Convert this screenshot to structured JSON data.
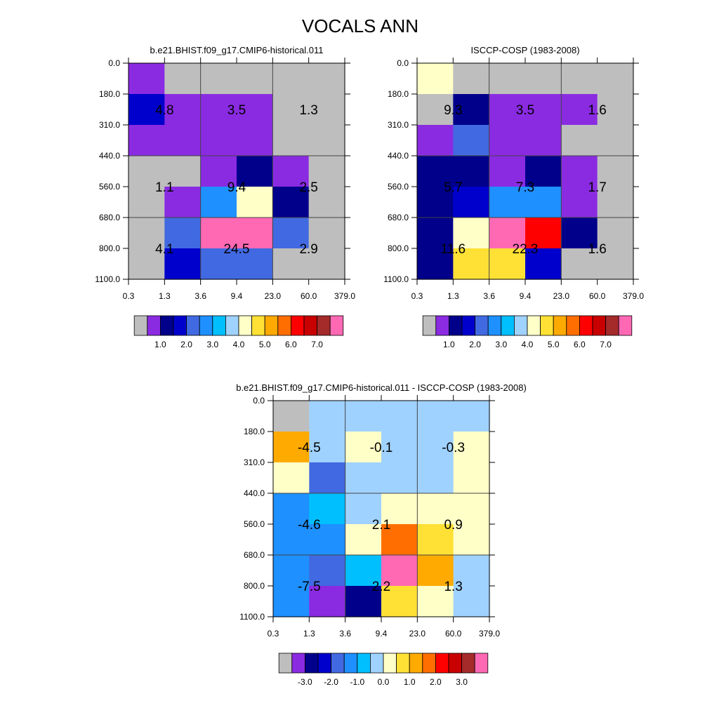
{
  "title": "VOCALS ANN",
  "colors": {
    "missing": "#bebebe",
    "cell_border": "#000000",
    "grid_line": "#444444"
  },
  "chart_data": [
    {
      "type": "heatmap",
      "id": "model",
      "title": "b.e21.BHIST.f09_g17.CMIP6-historical.011",
      "x_ticks": [
        "0.3",
        "1.3",
        "3.6",
        "9.4",
        "23.0",
        "60.0",
        "379.0"
      ],
      "y_ticks": [
        "0.0",
        "180.0",
        "310.0",
        "440.0",
        "560.0",
        "680.0",
        "800.0",
        "1100.0"
      ],
      "cells": [
        [
          "#8a2be2",
          "#bebebe",
          "#bebebe",
          "#bebebe",
          "#bebebe",
          "#bebebe"
        ],
        [
          "#0000cd",
          "#8a2be2",
          "#8a2be2",
          "#8a2be2",
          "#bebebe",
          "#bebebe"
        ],
        [
          "#8a2be2",
          "#8a2be2",
          "#8a2be2",
          "#8a2be2",
          "#bebebe",
          "#bebebe"
        ],
        [
          "#bebebe",
          "#bebebe",
          "#8a2be2",
          "#00008b",
          "#8a2be2",
          "#bebebe"
        ],
        [
          "#bebebe",
          "#8a2be2",
          "#1e90ff",
          "#ffffc8",
          "#00008b",
          "#bebebe"
        ],
        [
          "#bebebe",
          "#4169e1",
          "#ff69b4",
          "#ff69b4",
          "#4169e1",
          "#bebebe"
        ],
        [
          "#bebebe",
          "#0000cd",
          "#4169e1",
          "#4169e1",
          "#bebebe",
          "#bebebe"
        ]
      ],
      "block_values": [
        [
          "4.8",
          "3.5",
          "1.3"
        ],
        [
          "1.1",
          "9.4",
          "2.5"
        ],
        [
          "4.1",
          "24.5",
          "2.9"
        ]
      ],
      "colorbar": {
        "colors": [
          "#bebebe",
          "#8a2be2",
          "#00008b",
          "#0000cd",
          "#4169e1",
          "#1e90ff",
          "#00bfff",
          "#a0d2ff",
          "#ffffc8",
          "#ffe135",
          "#ffaa00",
          "#ff6e00",
          "#ff0000",
          "#c80000",
          "#a52a2a",
          "#ff69b4"
        ],
        "labels": [
          "1.0",
          "2.0",
          "3.0",
          "4.0",
          "5.0",
          "6.0",
          "7.0"
        ]
      }
    },
    {
      "type": "heatmap",
      "id": "obs",
      "title": "ISCCP-COSP (1983-2008)",
      "x_ticks": [
        "0.3",
        "1.3",
        "3.6",
        "9.4",
        "23.0",
        "60.0",
        "379.0"
      ],
      "y_ticks": [
        "0.0",
        "180.0",
        "310.0",
        "440.0",
        "560.0",
        "680.0",
        "800.0",
        "1100.0"
      ],
      "cells": [
        [
          "#ffffc8",
          "#bebebe",
          "#bebebe",
          "#bebebe",
          "#bebebe",
          "#bebebe"
        ],
        [
          "#bebebe",
          "#00008b",
          "#8a2be2",
          "#8a2be2",
          "#8a2be2",
          "#bebebe"
        ],
        [
          "#8a2be2",
          "#4169e1",
          "#8a2be2",
          "#8a2be2",
          "#bebebe",
          "#bebebe"
        ],
        [
          "#00008b",
          "#00008b",
          "#8a2be2",
          "#00008b",
          "#8a2be2",
          "#bebebe"
        ],
        [
          "#00008b",
          "#0000cd",
          "#1e90ff",
          "#1e90ff",
          "#8a2be2",
          "#bebebe"
        ],
        [
          "#00008b",
          "#ffffc8",
          "#ff69b4",
          "#ff0000",
          "#00008b",
          "#bebebe"
        ],
        [
          "#00008b",
          "#ffe135",
          "#ffe135",
          "#0000cd",
          "#bebebe",
          "#bebebe"
        ]
      ],
      "block_values": [
        [
          "9.3",
          "3.5",
          "1.6"
        ],
        [
          "5.7",
          "7.3",
          "1.7"
        ],
        [
          "11.6",
          "22.3",
          "1.6"
        ]
      ],
      "colorbar": {
        "colors": [
          "#bebebe",
          "#8a2be2",
          "#00008b",
          "#0000cd",
          "#4169e1",
          "#1e90ff",
          "#00bfff",
          "#a0d2ff",
          "#ffffc8",
          "#ffe135",
          "#ffaa00",
          "#ff6e00",
          "#ff0000",
          "#c80000",
          "#a52a2a",
          "#ff69b4"
        ],
        "labels": [
          "1.0",
          "2.0",
          "3.0",
          "4.0",
          "5.0",
          "6.0",
          "7.0"
        ]
      }
    },
    {
      "type": "heatmap",
      "id": "diff",
      "title": "b.e21.BHIST.f09_g17.CMIP6-historical.011 - ISCCP-COSP (1983-2008)",
      "x_ticks": [
        "0.3",
        "1.3",
        "3.6",
        "9.4",
        "23.0",
        "60.0",
        "379.0"
      ],
      "y_ticks": [
        "0.0",
        "180.0",
        "310.0",
        "440.0",
        "560.0",
        "680.0",
        "800.0",
        "1100.0"
      ],
      "cells": [
        [
          "#bebebe",
          "#a0d2ff",
          "#a0d2ff",
          "#a0d2ff",
          "#a0d2ff",
          "#a0d2ff"
        ],
        [
          "#ffaa00",
          "#a0d2ff",
          "#ffffc8",
          "#a0d2ff",
          "#a0d2ff",
          "#ffffc8"
        ],
        [
          "#ffffc8",
          "#4169e1",
          "#a0d2ff",
          "#a0d2ff",
          "#a0d2ff",
          "#ffffc8"
        ],
        [
          "#1e90ff",
          "#00bfff",
          "#a0d2ff",
          "#ffffc8",
          "#ffffc8",
          "#ffffc8"
        ],
        [
          "#1e90ff",
          "#1e90ff",
          "#ffffc8",
          "#ff6e00",
          "#ffe135",
          "#ffffc8"
        ],
        [
          "#1e90ff",
          "#4169e1",
          "#00bfff",
          "#ff69b4",
          "#ffaa00",
          "#a0d2ff"
        ],
        [
          "#1e90ff",
          "#8a2be2",
          "#00008b",
          "#ffe135",
          "#ffffc8",
          "#a0d2ff"
        ]
      ],
      "block_values": [
        [
          "-4.5",
          "-0.1",
          "-0.3"
        ],
        [
          "-4.6",
          "2.1",
          "0.9"
        ],
        [
          "-7.5",
          "2.2",
          "1.3"
        ]
      ],
      "colorbar": {
        "colors": [
          "#bebebe",
          "#8a2be2",
          "#00008b",
          "#0000cd",
          "#4169e1",
          "#1e90ff",
          "#00bfff",
          "#a0d2ff",
          "#ffffc8",
          "#ffe135",
          "#ffaa00",
          "#ff6e00",
          "#ff0000",
          "#c80000",
          "#a52a2a",
          "#ff69b4"
        ],
        "labels": [
          "-3.0",
          "-2.0",
          "-1.0",
          "0.0",
          "1.0",
          "2.0",
          "3.0"
        ]
      }
    }
  ]
}
